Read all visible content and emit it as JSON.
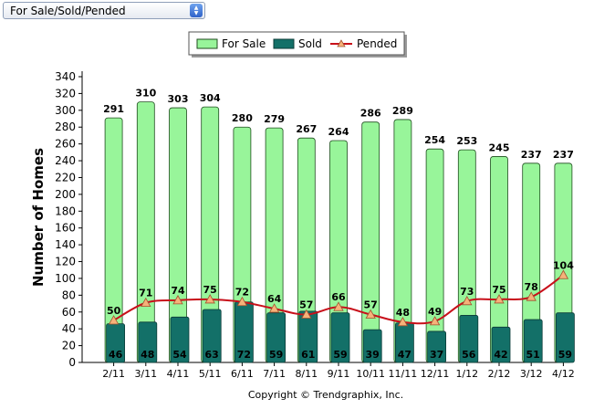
{
  "selector": {
    "value": "For Sale/Sold/Pended",
    "up_glyph": "▲",
    "down_glyph": "▼"
  },
  "copyright": "Copyright © Trendgraphix, Inc.",
  "colors": {
    "for_sale_fill": "#98f59a",
    "for_sale_edge": "#1f4d1f",
    "sold_fill": "#137068",
    "sold_edge": "#0b3b37",
    "pended_line": "#c8101a",
    "pended_marker": "#f6b27a",
    "pended_marker_edge": "#a0522d"
  },
  "chart_data": {
    "type": "bar",
    "categories": [
      "2/11",
      "3/11",
      "4/11",
      "5/11",
      "6/11",
      "7/11",
      "8/11",
      "9/11",
      "10/11",
      "11/11",
      "12/11",
      "1/12",
      "2/12",
      "3/12",
      "4/12"
    ],
    "series": [
      {
        "name": "For Sale",
        "type": "bar",
        "values": [
          291,
          310,
          303,
          304,
          280,
          279,
          267,
          264,
          286,
          289,
          254,
          253,
          245,
          237,
          237
        ]
      },
      {
        "name": "Sold",
        "type": "bar",
        "values": [
          46,
          48,
          54,
          63,
          72,
          59,
          61,
          59,
          39,
          47,
          37,
          56,
          42,
          51,
          59
        ]
      },
      {
        "name": "Pended",
        "type": "line",
        "values": [
          50,
          71,
          74,
          75,
          72,
          64,
          57,
          66,
          57,
          48,
          49,
          73,
          75,
          78,
          104
        ]
      }
    ],
    "ylabel": "Number of Homes",
    "xlabel": "",
    "ylim": [
      0,
      340
    ],
    "yticks": [
      0,
      20,
      40,
      60,
      80,
      100,
      120,
      140,
      160,
      180,
      200,
      220,
      240,
      260,
      280,
      300,
      320,
      340
    ],
    "legend": {
      "position": "top-center",
      "entries": [
        "For Sale",
        "Sold",
        "Pended"
      ]
    },
    "grid": false
  }
}
